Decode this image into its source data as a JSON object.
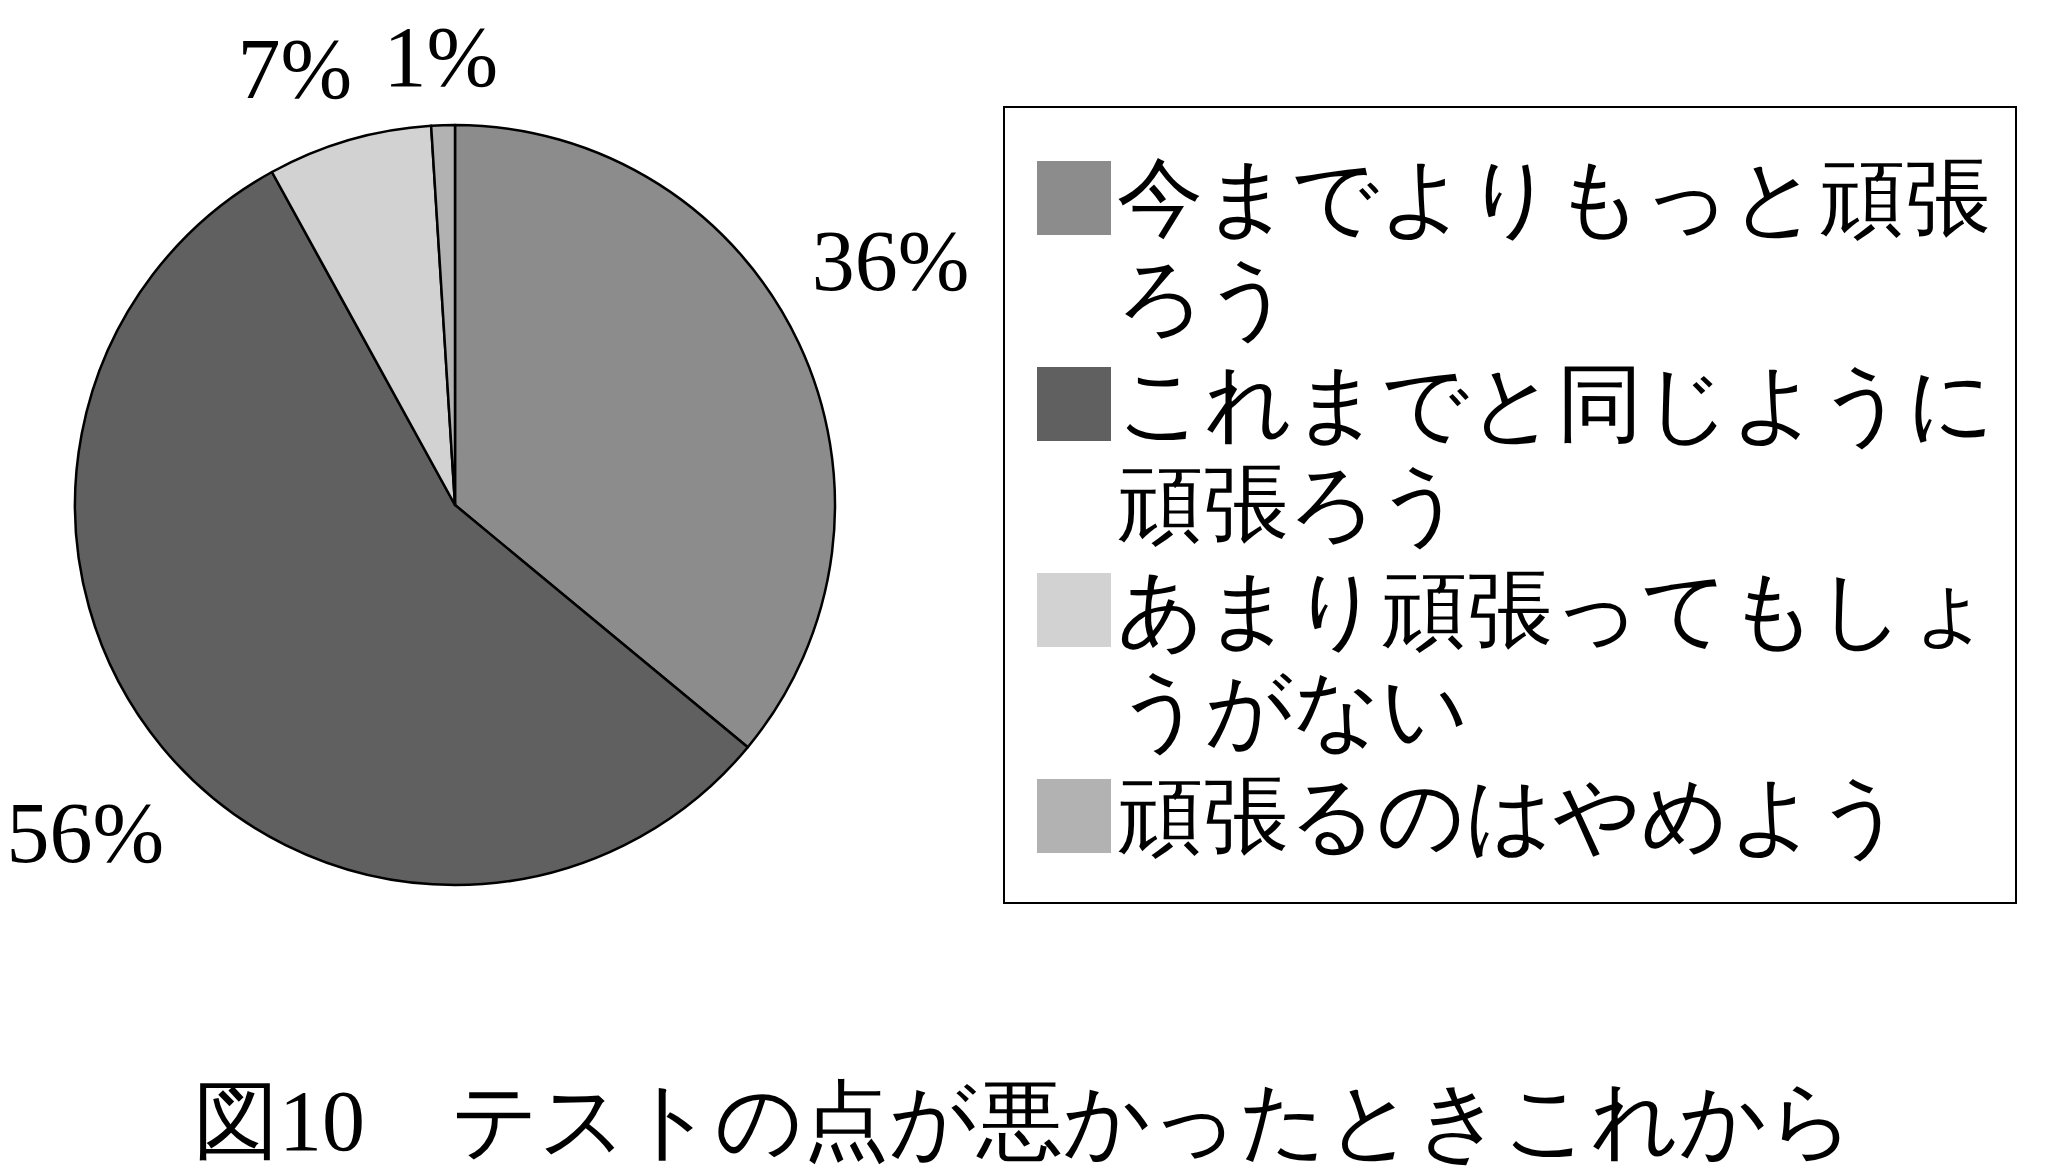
{
  "chart_data": {
    "type": "pie",
    "title": "図10　テストの点が悪かったときこれから",
    "categories": [
      "今までよりもっと頑張ろう",
      "これまでと同じように頑張ろう",
      "あまり頑張ってもしょうがない",
      "頑張るのはやめよう"
    ],
    "values": [
      36,
      56,
      7,
      1
    ],
    "colors": [
      "#8c8c8c",
      "#606060",
      "#d2d2d2",
      "#b2b2b2"
    ],
    "value_labels": [
      "36%",
      "56%",
      "7%",
      "1%"
    ],
    "legend": "right"
  }
}
